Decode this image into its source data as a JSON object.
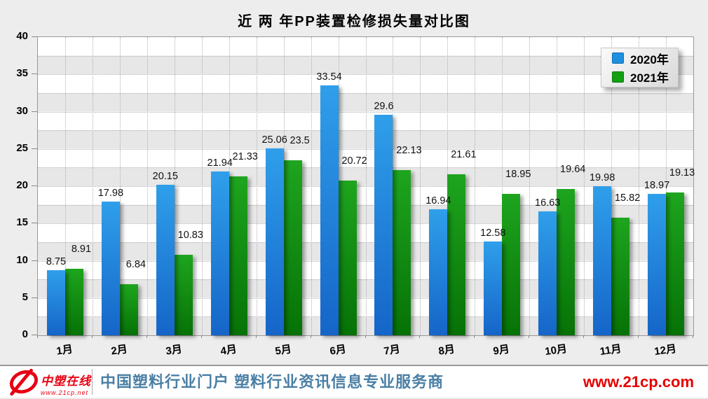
{
  "title": "近 两 年PP装置检修损失量对比图",
  "chart_data": {
    "type": "bar",
    "categories": [
      "1月",
      "2月",
      "3月",
      "4月",
      "5月",
      "6月",
      "7月",
      "8月",
      "9月",
      "10月",
      "11月",
      "12月"
    ],
    "series": [
      {
        "name": "2020年",
        "values": [
          8.75,
          17.98,
          20.15,
          21.94,
          25.06,
          33.54,
          29.6,
          16.94,
          12.58,
          16.63,
          19.98,
          18.97
        ]
      },
      {
        "name": "2021年",
        "values": [
          8.91,
          6.84,
          10.83,
          21.33,
          23.5,
          20.72,
          22.13,
          21.61,
          18.95,
          19.64,
          15.82,
          19.13
        ]
      }
    ],
    "ylim": [
      0,
      40
    ],
    "yticks": [
      "0",
      "5",
      "10",
      "15",
      "20",
      "25",
      "30",
      "35",
      "40"
    ],
    "xlabel": "",
    "ylabel": "",
    "grid": true,
    "legend_position": "top-right",
    "colors": {
      "series_2020_top": "#2f9fea",
      "series_2020_bottom": "#1565c8",
      "series_2021_top": "#1ea51e",
      "series_2021_bottom": "#067206"
    }
  },
  "legend": {
    "items": [
      {
        "label": "2020年",
        "color": "#1e90e2"
      },
      {
        "label": "2021年",
        "color": "#12a012"
      }
    ]
  },
  "footer": {
    "logo_name": "中塑在线",
    "logo_url": "www.21cp.net",
    "tagline": "中国塑料行业门户  塑料行业资讯信息专业服务商",
    "website": "www.21cp.com",
    "accent_red": "#e60012",
    "tagline_blue": "#4a7fa5"
  }
}
